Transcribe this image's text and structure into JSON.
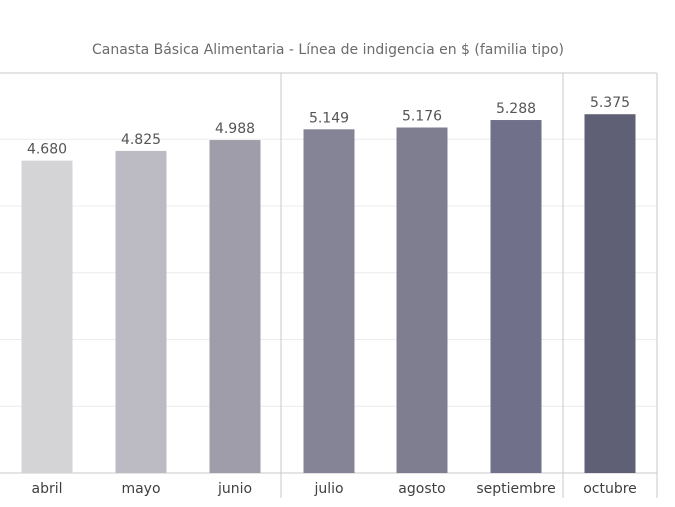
{
  "chart_data": {
    "type": "bar",
    "title": "Canasta Básica Alimentaria - Línea de indigencia en $ (familia tipo)",
    "categories": [
      "abril",
      "mayo",
      "junio",
      "julio",
      "agosto",
      "septiembre",
      "octubre"
    ],
    "values": [
      4680,
      4825,
      4988,
      5149,
      5176,
      5288,
      5375
    ],
    "value_labels": [
      "4.680",
      "4.825",
      "4.988",
      "5.149",
      "5.176",
      "5.288",
      "5.375"
    ],
    "colors": [
      "#d4d4d6",
      "#bcbbc3",
      "#9e9da9",
      "#858496",
      "#7f7d90",
      "#71708a",
      "#5f5f75"
    ],
    "ylim": [
      0,
      6000
    ],
    "xlabel": "",
    "ylabel": "",
    "grid": true,
    "legend": "none"
  }
}
